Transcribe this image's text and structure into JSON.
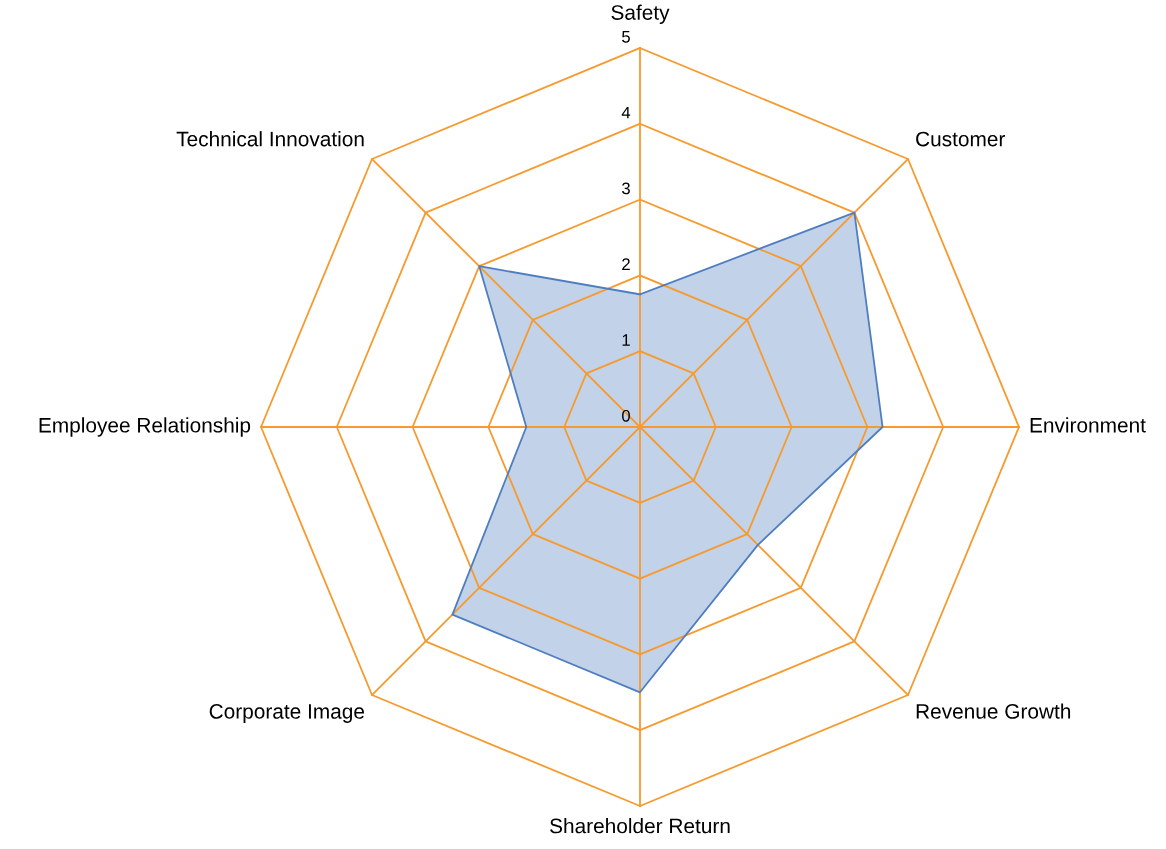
{
  "chart_data": {
    "type": "radar",
    "categories": [
      "Safety",
      "Customer",
      "Environment",
      "Revenue Growth",
      "Shareholder Return",
      "Corporate Image",
      "Employee Relationship",
      "Technical Innovation"
    ],
    "series": [
      {
        "color": "#4f7ec0",
        "values": [
          1.75,
          4,
          3.2,
          2.2,
          3.5,
          3.5,
          1.5,
          3
        ]
      }
    ],
    "ylim": [
      0,
      5
    ],
    "yticks": [
      0,
      1,
      2,
      3,
      4,
      5
    ],
    "grid": true
  }
}
